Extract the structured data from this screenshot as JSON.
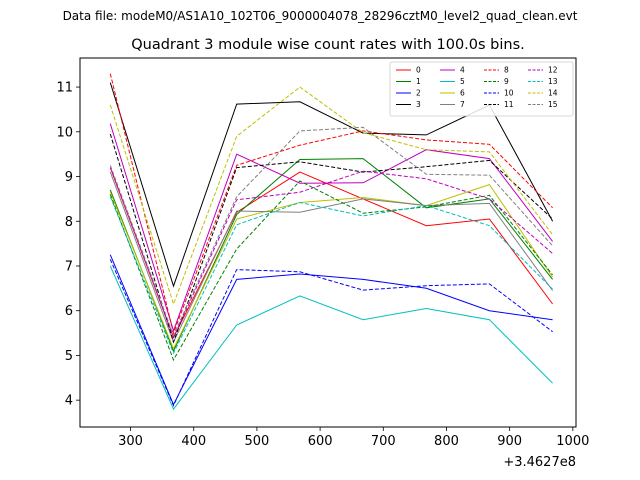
{
  "chart_data": {
    "type": "line",
    "suptitle": "Data file: modeM0/AS1A10_102T06_9000004078_28296cztM0_level2_quad_clean.evt",
    "title": "Quadrant 3 module wise count rates with 100.0s bins.",
    "xlabel": "",
    "ylabel": "",
    "x_offset_label": "+3.4627e8",
    "x": [
      268,
      368,
      468,
      568,
      668,
      768,
      868,
      968
    ],
    "xlim": [
      220,
      1005
    ],
    "ylim": [
      3.4,
      11.65
    ],
    "xticks": [
      300,
      400,
      500,
      600,
      700,
      800,
      900,
      1000
    ],
    "yticks": [
      4,
      5,
      6,
      7,
      8,
      9,
      10,
      11
    ],
    "grid": false,
    "legend": {
      "placement": "top-right",
      "columns": 4
    },
    "series": [
      {
        "name": "0",
        "color": "#ff0000",
        "dash": "solid",
        "values": [
          9.2,
          5.4,
          8.2,
          9.1,
          8.5,
          7.9,
          8.05,
          6.15
        ]
      },
      {
        "name": "1",
        "color": "#008000",
        "dash": "solid",
        "values": [
          8.7,
          5.1,
          8.15,
          9.38,
          9.4,
          8.3,
          8.5,
          6.7
        ]
      },
      {
        "name": "2",
        "color": "#0000ff",
        "dash": "solid",
        "values": [
          7.25,
          3.9,
          6.7,
          6.82,
          6.7,
          6.5,
          6.0,
          5.8
        ]
      },
      {
        "name": "3",
        "color": "#000000",
        "dash": "solid",
        "values": [
          11.1,
          6.55,
          10.62,
          10.67,
          9.97,
          9.93,
          10.6,
          8.0
        ]
      },
      {
        "name": "4",
        "color": "#bf00bf",
        "dash": "solid",
        "values": [
          10.18,
          5.55,
          9.5,
          8.85,
          8.86,
          9.6,
          9.4,
          7.55
        ]
      },
      {
        "name": "5",
        "color": "#00bfbf",
        "dash": "solid",
        "values": [
          7.0,
          3.8,
          5.68,
          6.33,
          5.8,
          6.05,
          5.8,
          4.38
        ]
      },
      {
        "name": "6",
        "color": "#bfbf00",
        "dash": "solid",
        "values": [
          8.65,
          5.15,
          8.05,
          8.42,
          8.53,
          8.35,
          8.82,
          6.75
        ]
      },
      {
        "name": "7",
        "color": "#808080",
        "dash": "solid",
        "values": [
          9.1,
          5.3,
          8.23,
          8.2,
          8.5,
          8.35,
          8.4,
          6.45
        ]
      },
      {
        "name": "8",
        "color": "#ff0000",
        "dash": "dashed",
        "values": [
          11.3,
          5.5,
          9.25,
          9.7,
          10.02,
          9.82,
          9.72,
          8.3
        ]
      },
      {
        "name": "9",
        "color": "#008000",
        "dash": "dashed",
        "values": [
          8.6,
          4.9,
          7.38,
          8.9,
          8.18,
          8.32,
          8.58,
          6.8
        ]
      },
      {
        "name": "10",
        "color": "#0000ff",
        "dash": "dashed",
        "values": [
          7.15,
          3.88,
          6.92,
          6.87,
          6.46,
          6.56,
          6.6,
          5.53
        ]
      },
      {
        "name": "11",
        "color": "#000000",
        "dash": "dashed",
        "values": [
          9.95,
          5.3,
          9.2,
          9.33,
          9.1,
          9.22,
          9.36,
          8.05
        ]
      },
      {
        "name": "12",
        "color": "#bf00bf",
        "dash": "dashed",
        "values": [
          9.2,
          5.4,
          8.48,
          8.65,
          9.12,
          8.95,
          8.5,
          7.28
        ]
      },
      {
        "name": "13",
        "color": "#00bfbf",
        "dash": "dashed",
        "values": [
          8.55,
          5.05,
          7.92,
          8.42,
          8.12,
          8.35,
          7.9,
          6.48
        ]
      },
      {
        "name": "14",
        "color": "#bfbf00",
        "dash": "dashed",
        "values": [
          10.6,
          6.15,
          9.9,
          11.0,
          9.98,
          9.6,
          9.55,
          7.7
        ]
      },
      {
        "name": "15",
        "color": "#808080",
        "dash": "dashed",
        "values": [
          9.25,
          5.45,
          8.55,
          10.02,
          10.1,
          9.05,
          9.03,
          7.45
        ]
      }
    ]
  }
}
